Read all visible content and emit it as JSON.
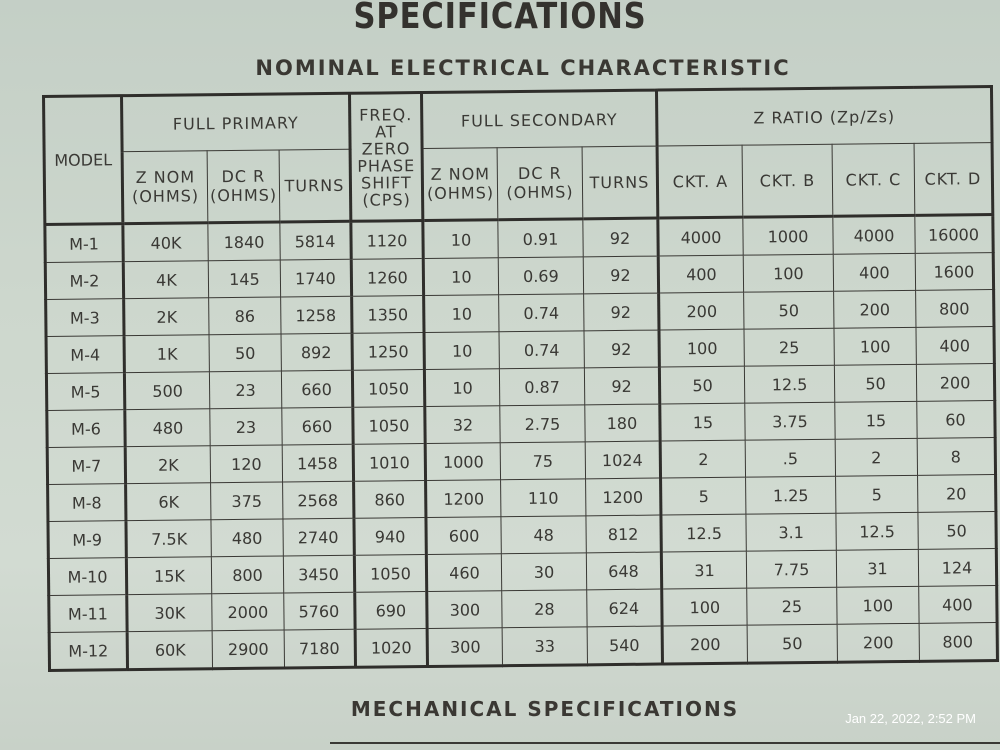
{
  "title": "SPECIFICATIONS",
  "subtitle": "NOMINAL ELECTRICAL CHARACTERISTIC",
  "table": {
    "groups": {
      "model": "MODEL",
      "primary": "FULL PRIMARY",
      "freq": "FREQ. AT ZERO PHASE SHIFT (CPS)",
      "secondary": "FULL SECONDARY",
      "zratio": "Z RATIO (Zp/Zs)"
    },
    "subheaders": {
      "znom": "Z NOM (OHMS)",
      "dcr": "DC R (OHMS)",
      "turns": "TURNS",
      "ckt_a": "CKT. A",
      "ckt_b": "CKT. B",
      "ckt_c": "CKT. C",
      "ckt_d": "CKT. D"
    },
    "rows": [
      [
        "M-1",
        "40K",
        "1840",
        "5814",
        "1120",
        "10",
        "0.91",
        "92",
        "4000",
        "1000",
        "4000",
        "16000"
      ],
      [
        "M-2",
        "4K",
        "145",
        "1740",
        "1260",
        "10",
        "0.69",
        "92",
        "400",
        "100",
        "400",
        "1600"
      ],
      [
        "M-3",
        "2K",
        "86",
        "1258",
        "1350",
        "10",
        "0.74",
        "92",
        "200",
        "50",
        "200",
        "800"
      ],
      [
        "M-4",
        "1K",
        "50",
        "892",
        "1250",
        "10",
        "0.74",
        "92",
        "100",
        "25",
        "100",
        "400"
      ],
      [
        "M-5",
        "500",
        "23",
        "660",
        "1050",
        "10",
        "0.87",
        "92",
        "50",
        "12.5",
        "50",
        "200"
      ],
      [
        "M-6",
        "480",
        "23",
        "660",
        "1050",
        "32",
        "2.75",
        "180",
        "15",
        "3.75",
        "15",
        "60"
      ],
      [
        "M-7",
        "2K",
        "120",
        "1458",
        "1010",
        "1000",
        "75",
        "1024",
        "2",
        ".5",
        "2",
        "8"
      ],
      [
        "M-8",
        "6K",
        "375",
        "2568",
        "860",
        "1200",
        "110",
        "1200",
        "5",
        "1.25",
        "5",
        "20"
      ],
      [
        "M-9",
        "7.5K",
        "480",
        "2740",
        "940",
        "600",
        "48",
        "812",
        "12.5",
        "3.1",
        "12.5",
        "50"
      ],
      [
        "M-10",
        "15K",
        "800",
        "3450",
        "1050",
        "460",
        "30",
        "648",
        "31",
        "7.75",
        "31",
        "124"
      ],
      [
        "M-11",
        "30K",
        "2000",
        "5760",
        "690",
        "300",
        "28",
        "624",
        "100",
        "25",
        "100",
        "400"
      ],
      [
        "M-12",
        "60K",
        "2900",
        "7180",
        "1020",
        "300",
        "33",
        "540",
        "200",
        "50",
        "200",
        "800"
      ]
    ]
  },
  "mechanical_heading": "MECHANICAL SPECIFICATIONS",
  "timestamp": "Jan 22, 2022, 2:52 PM"
}
